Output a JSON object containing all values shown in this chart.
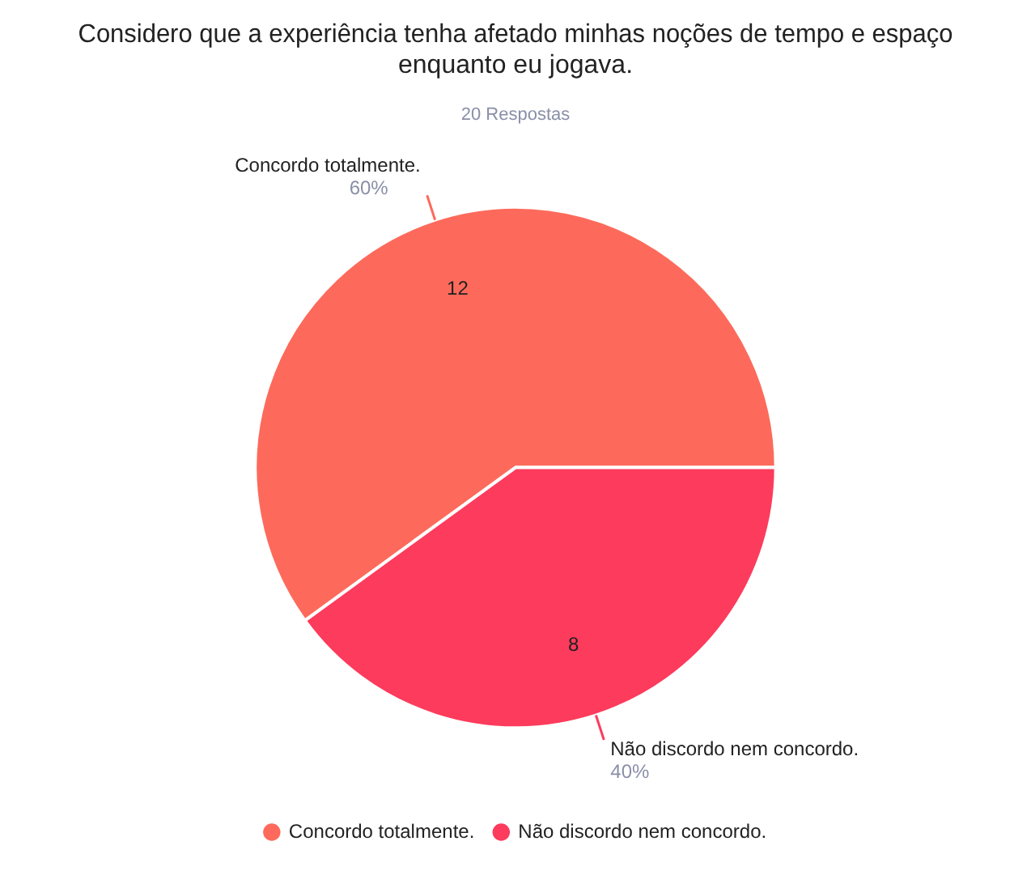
{
  "chart_data": {
    "type": "pie",
    "title": "Considero que a experiência tenha afetado minhas noções de tempo e espaço enquanto eu jogava.",
    "subtitle": "20 Respostas",
    "categories": [
      "Concordo totalmente.",
      "Não discordo nem concordo."
    ],
    "values": [
      12,
      8
    ],
    "colors": [
      "#fd6a5b",
      "#fd3b5c"
    ],
    "annotations": [
      "60%",
      "40%"
    ],
    "data_labels": true,
    "legend": "bottom"
  }
}
